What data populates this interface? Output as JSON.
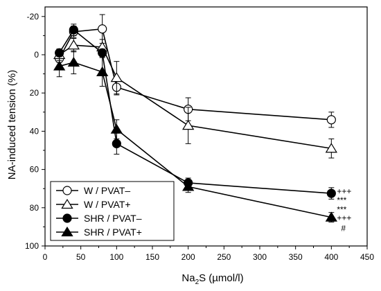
{
  "chart_data": {
    "type": "line",
    "xlabel_main": "Na",
    "xlabel_sub": "2",
    "xlabel_rest": "S (µmol/l)",
    "ylabel": "NA-induced tension (%)",
    "xlim": [
      0,
      450
    ],
    "ylim": [
      100,
      -25
    ],
    "x_ticks": [
      0,
      50,
      100,
      150,
      200,
      250,
      300,
      350,
      400,
      450
    ],
    "y_ticks": [
      -20,
      0,
      20,
      40,
      60,
      80,
      100
    ],
    "y_tick_labels": [
      "-20",
      "0",
      "20",
      "40",
      "60",
      "80",
      "100"
    ],
    "grid": false,
    "legend_position": "bottom-left",
    "series": [
      {
        "name": "W / PVAT–",
        "marker": "circle",
        "filled": false,
        "x": [
          20,
          40,
          80,
          100,
          200,
          400
        ],
        "y": [
          2,
          -12,
          -13.5,
          17,
          28.5,
          34
        ],
        "err": [
          2,
          3,
          7.5,
          4,
          6,
          4
        ]
      },
      {
        "name": "W / PVAT+",
        "marker": "triangle",
        "filled": false,
        "x": [
          20,
          40,
          80,
          100,
          200,
          400
        ],
        "y": [
          0,
          -5,
          -4,
          12,
          37,
          49
        ],
        "err": [
          3,
          3.5,
          4,
          8.5,
          9.5,
          5
        ]
      },
      {
        "name": "SHR / PVAT–",
        "marker": "circle",
        "filled": true,
        "x": [
          20,
          40,
          80,
          100,
          200,
          400
        ],
        "y": [
          -1,
          -13,
          -1,
          46.5,
          67,
          72.5
        ],
        "err": [
          2,
          3,
          2,
          5.5,
          2.5,
          3
        ]
      },
      {
        "name": "SHR / PVAT+",
        "marker": "triangle",
        "filled": true,
        "x": [
          20,
          40,
          80,
          100,
          200,
          400
        ],
        "y": [
          6,
          4,
          9,
          39,
          69,
          85
        ],
        "err": [
          5.5,
          6,
          7.5,
          5,
          3,
          2.5
        ]
      }
    ],
    "annotations": [
      "+++",
      "***",
      "***",
      "+++",
      "#"
    ]
  }
}
